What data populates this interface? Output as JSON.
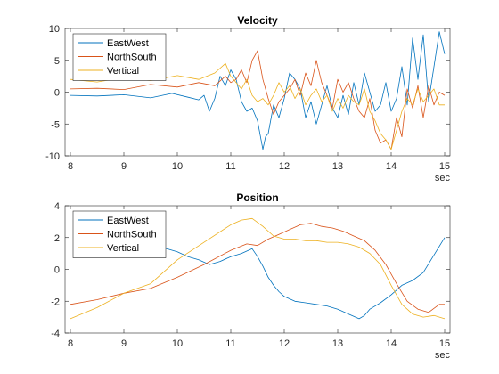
{
  "chart_data": [
    {
      "type": "line",
      "title": "Velocity",
      "xunit": "sec",
      "xlim": [
        7.9,
        15.1
      ],
      "ylim": [
        -10,
        10
      ],
      "xticks": [
        8,
        9,
        10,
        11,
        12,
        13,
        14,
        15
      ],
      "yticks": [
        -10,
        -5,
        0,
        5,
        10
      ],
      "legend": "top-left",
      "grid": false,
      "series": [
        {
          "name": "EastWest",
          "color": "#0072BD",
          "x": [
            8.0,
            8.5,
            9.0,
            9.5,
            9.9,
            10.2,
            10.4,
            10.5,
            10.6,
            10.7,
            10.8,
            10.9,
            11.0,
            11.1,
            11.2,
            11.3,
            11.4,
            11.5,
            11.6,
            11.65,
            11.7,
            11.8,
            11.9,
            12.0,
            12.1,
            12.2,
            12.3,
            12.4,
            12.5,
            12.6,
            12.7,
            12.8,
            12.9,
            13.0,
            13.1,
            13.2,
            13.3,
            13.4,
            13.5,
            13.6,
            13.7,
            13.8,
            13.9,
            14.0,
            14.1,
            14.2,
            14.3,
            14.4,
            14.5,
            14.6,
            14.7,
            14.8,
            14.9,
            15.0
          ],
          "y": [
            -0.5,
            -0.6,
            -0.4,
            -0.9,
            -0.2,
            -0.8,
            -1.2,
            -0.5,
            -3.0,
            -1.0,
            2.5,
            1.0,
            3.5,
            2.0,
            -1.5,
            -3.0,
            -2.5,
            -4.5,
            -9.0,
            -7.0,
            -6.5,
            -2.0,
            -4.0,
            -1.0,
            3.0,
            2.0,
            0.5,
            -4.0,
            -1.5,
            -5.0,
            -2.0,
            1.0,
            -2.5,
            -4.0,
            -0.5,
            -3.5,
            1.5,
            -2.0,
            3.0,
            0.0,
            -3.0,
            -2.0,
            1.5,
            -3.0,
            -1.0,
            4.0,
            -2.0,
            8.5,
            2.0,
            9.0,
            -1.5,
            4.0,
            9.5,
            6.0
          ]
        },
        {
          "name": "NorthSouth",
          "color": "#D95319",
          "x": [
            8.0,
            8.5,
            9.0,
            9.5,
            10.0,
            10.4,
            10.7,
            10.9,
            11.0,
            11.1,
            11.2,
            11.3,
            11.4,
            11.5,
            11.6,
            11.7,
            11.8,
            11.9,
            12.0,
            12.1,
            12.2,
            12.3,
            12.4,
            12.5,
            12.6,
            12.7,
            12.8,
            12.9,
            13.0,
            13.1,
            13.2,
            13.3,
            13.4,
            13.5,
            13.6,
            13.7,
            13.8,
            13.9,
            14.0,
            14.1,
            14.2,
            14.3,
            14.4,
            14.5,
            14.6,
            14.7,
            14.8,
            14.9,
            15.0
          ],
          "y": [
            0.5,
            0.6,
            0.4,
            1.2,
            0.8,
            1.5,
            1.0,
            2.5,
            1.5,
            2.0,
            3.5,
            1.5,
            5.0,
            6.5,
            2.0,
            -1.0,
            -3.5,
            -1.5,
            -0.5,
            0.5,
            2.0,
            -0.5,
            3.0,
            1.0,
            5.0,
            1.5,
            -0.5,
            -2.5,
            2.0,
            0.0,
            1.5,
            -1.0,
            -3.0,
            -4.0,
            -1.0,
            -6.0,
            -8.0,
            -7.5,
            -9.0,
            -4.0,
            -7.0,
            0.5,
            -2.5,
            1.0,
            -4.0,
            1.0,
            -2.0,
            0.0,
            -0.5
          ]
        },
        {
          "name": "Vertical",
          "color": "#EDB120",
          "x": [
            8.0,
            8.5,
            9.0,
            9.5,
            10.0,
            10.4,
            10.7,
            10.9,
            11.0,
            11.1,
            11.2,
            11.3,
            11.4,
            11.5,
            11.6,
            11.7,
            11.8,
            11.9,
            12.0,
            12.1,
            12.2,
            12.3,
            12.4,
            12.5,
            12.6,
            12.7,
            12.8,
            12.9,
            13.0,
            13.1,
            13.2,
            13.3,
            13.4,
            13.5,
            13.6,
            13.7,
            13.8,
            13.9,
            14.0,
            14.1,
            14.2,
            14.3,
            14.4,
            14.5,
            14.6,
            14.7,
            14.8,
            14.9,
            15.0
          ],
          "y": [
            2.0,
            1.6,
            2.3,
            1.8,
            2.6,
            2.0,
            3.0,
            4.5,
            2.5,
            1.5,
            0.5,
            2.0,
            -0.5,
            -1.5,
            -1.0,
            -2.0,
            -0.5,
            1.5,
            0.0,
            1.0,
            -1.0,
            0.5,
            -2.0,
            -0.5,
            0.5,
            -1.5,
            -0.5,
            -3.0,
            -1.0,
            -2.5,
            -0.5,
            -1.5,
            -2.0,
            0.5,
            -3.0,
            -4.5,
            -6.5,
            -7.5,
            -9.0,
            -6.0,
            -3.0,
            -1.0,
            -2.0,
            0.5,
            -1.5,
            -0.5,
            0.5,
            -2.0,
            -2.0
          ]
        }
      ]
    },
    {
      "type": "line",
      "title": "Position",
      "xunit": "sec",
      "xlim": [
        7.9,
        15.1
      ],
      "ylim": [
        -4,
        4
      ],
      "xticks": [
        8,
        9,
        10,
        11,
        12,
        13,
        14,
        15
      ],
      "yticks": [
        -4,
        -2,
        0,
        2,
        4
      ],
      "legend": "top-left",
      "grid": false,
      "series": [
        {
          "name": "EastWest",
          "color": "#0072BD",
          "x": [
            9.6,
            9.8,
            10.0,
            10.2,
            10.4,
            10.6,
            10.8,
            11.0,
            11.2,
            11.4,
            11.5,
            11.6,
            11.7,
            11.8,
            11.9,
            12.0,
            12.2,
            12.4,
            12.6,
            12.8,
            13.0,
            13.2,
            13.4,
            13.5,
            13.6,
            13.8,
            14.0,
            14.2,
            14.4,
            14.6,
            14.8,
            15.0
          ],
          "y": [
            1.5,
            1.3,
            1.1,
            0.8,
            0.6,
            0.3,
            0.5,
            0.8,
            1.0,
            1.3,
            0.8,
            0.2,
            -0.5,
            -1.0,
            -1.4,
            -1.7,
            -2.0,
            -2.1,
            -2.2,
            -2.3,
            -2.5,
            -2.8,
            -3.1,
            -2.9,
            -2.5,
            -2.1,
            -1.6,
            -1.0,
            -0.7,
            -0.2,
            0.9,
            2.0
          ]
        },
        {
          "name": "NorthSouth",
          "color": "#D95319",
          "x": [
            8.0,
            8.5,
            9.0,
            9.5,
            10.0,
            10.5,
            11.0,
            11.3,
            11.5,
            11.7,
            11.9,
            12.1,
            12.3,
            12.5,
            12.7,
            12.9,
            13.1,
            13.3,
            13.5,
            13.7,
            13.9,
            14.1,
            14.3,
            14.5,
            14.7,
            14.9,
            15.0
          ],
          "y": [
            -2.2,
            -1.9,
            -1.5,
            -1.2,
            -0.5,
            0.3,
            1.2,
            1.6,
            1.5,
            1.9,
            2.2,
            2.5,
            2.8,
            2.9,
            2.7,
            2.6,
            2.4,
            2.1,
            1.8,
            1.2,
            0.3,
            -0.9,
            -2.0,
            -2.5,
            -2.7,
            -2.2,
            -2.2
          ]
        },
        {
          "name": "Vertical",
          "color": "#EDB120",
          "x": [
            8.0,
            8.5,
            9.0,
            9.5,
            10.0,
            10.5,
            11.0,
            11.2,
            11.4,
            11.6,
            11.8,
            12.0,
            12.2,
            12.4,
            12.6,
            12.8,
            13.0,
            13.2,
            13.4,
            13.6,
            13.8,
            14.0,
            14.2,
            14.4,
            14.6,
            14.8,
            15.0
          ],
          "y": [
            -3.1,
            -2.4,
            -1.5,
            -0.9,
            0.6,
            1.7,
            2.8,
            3.1,
            3.2,
            2.7,
            2.1,
            1.9,
            1.9,
            1.8,
            1.8,
            1.7,
            1.7,
            1.6,
            1.4,
            1.0,
            0.3,
            -1.0,
            -2.2,
            -2.8,
            -3.0,
            -2.9,
            -3.1
          ]
        }
      ]
    }
  ]
}
